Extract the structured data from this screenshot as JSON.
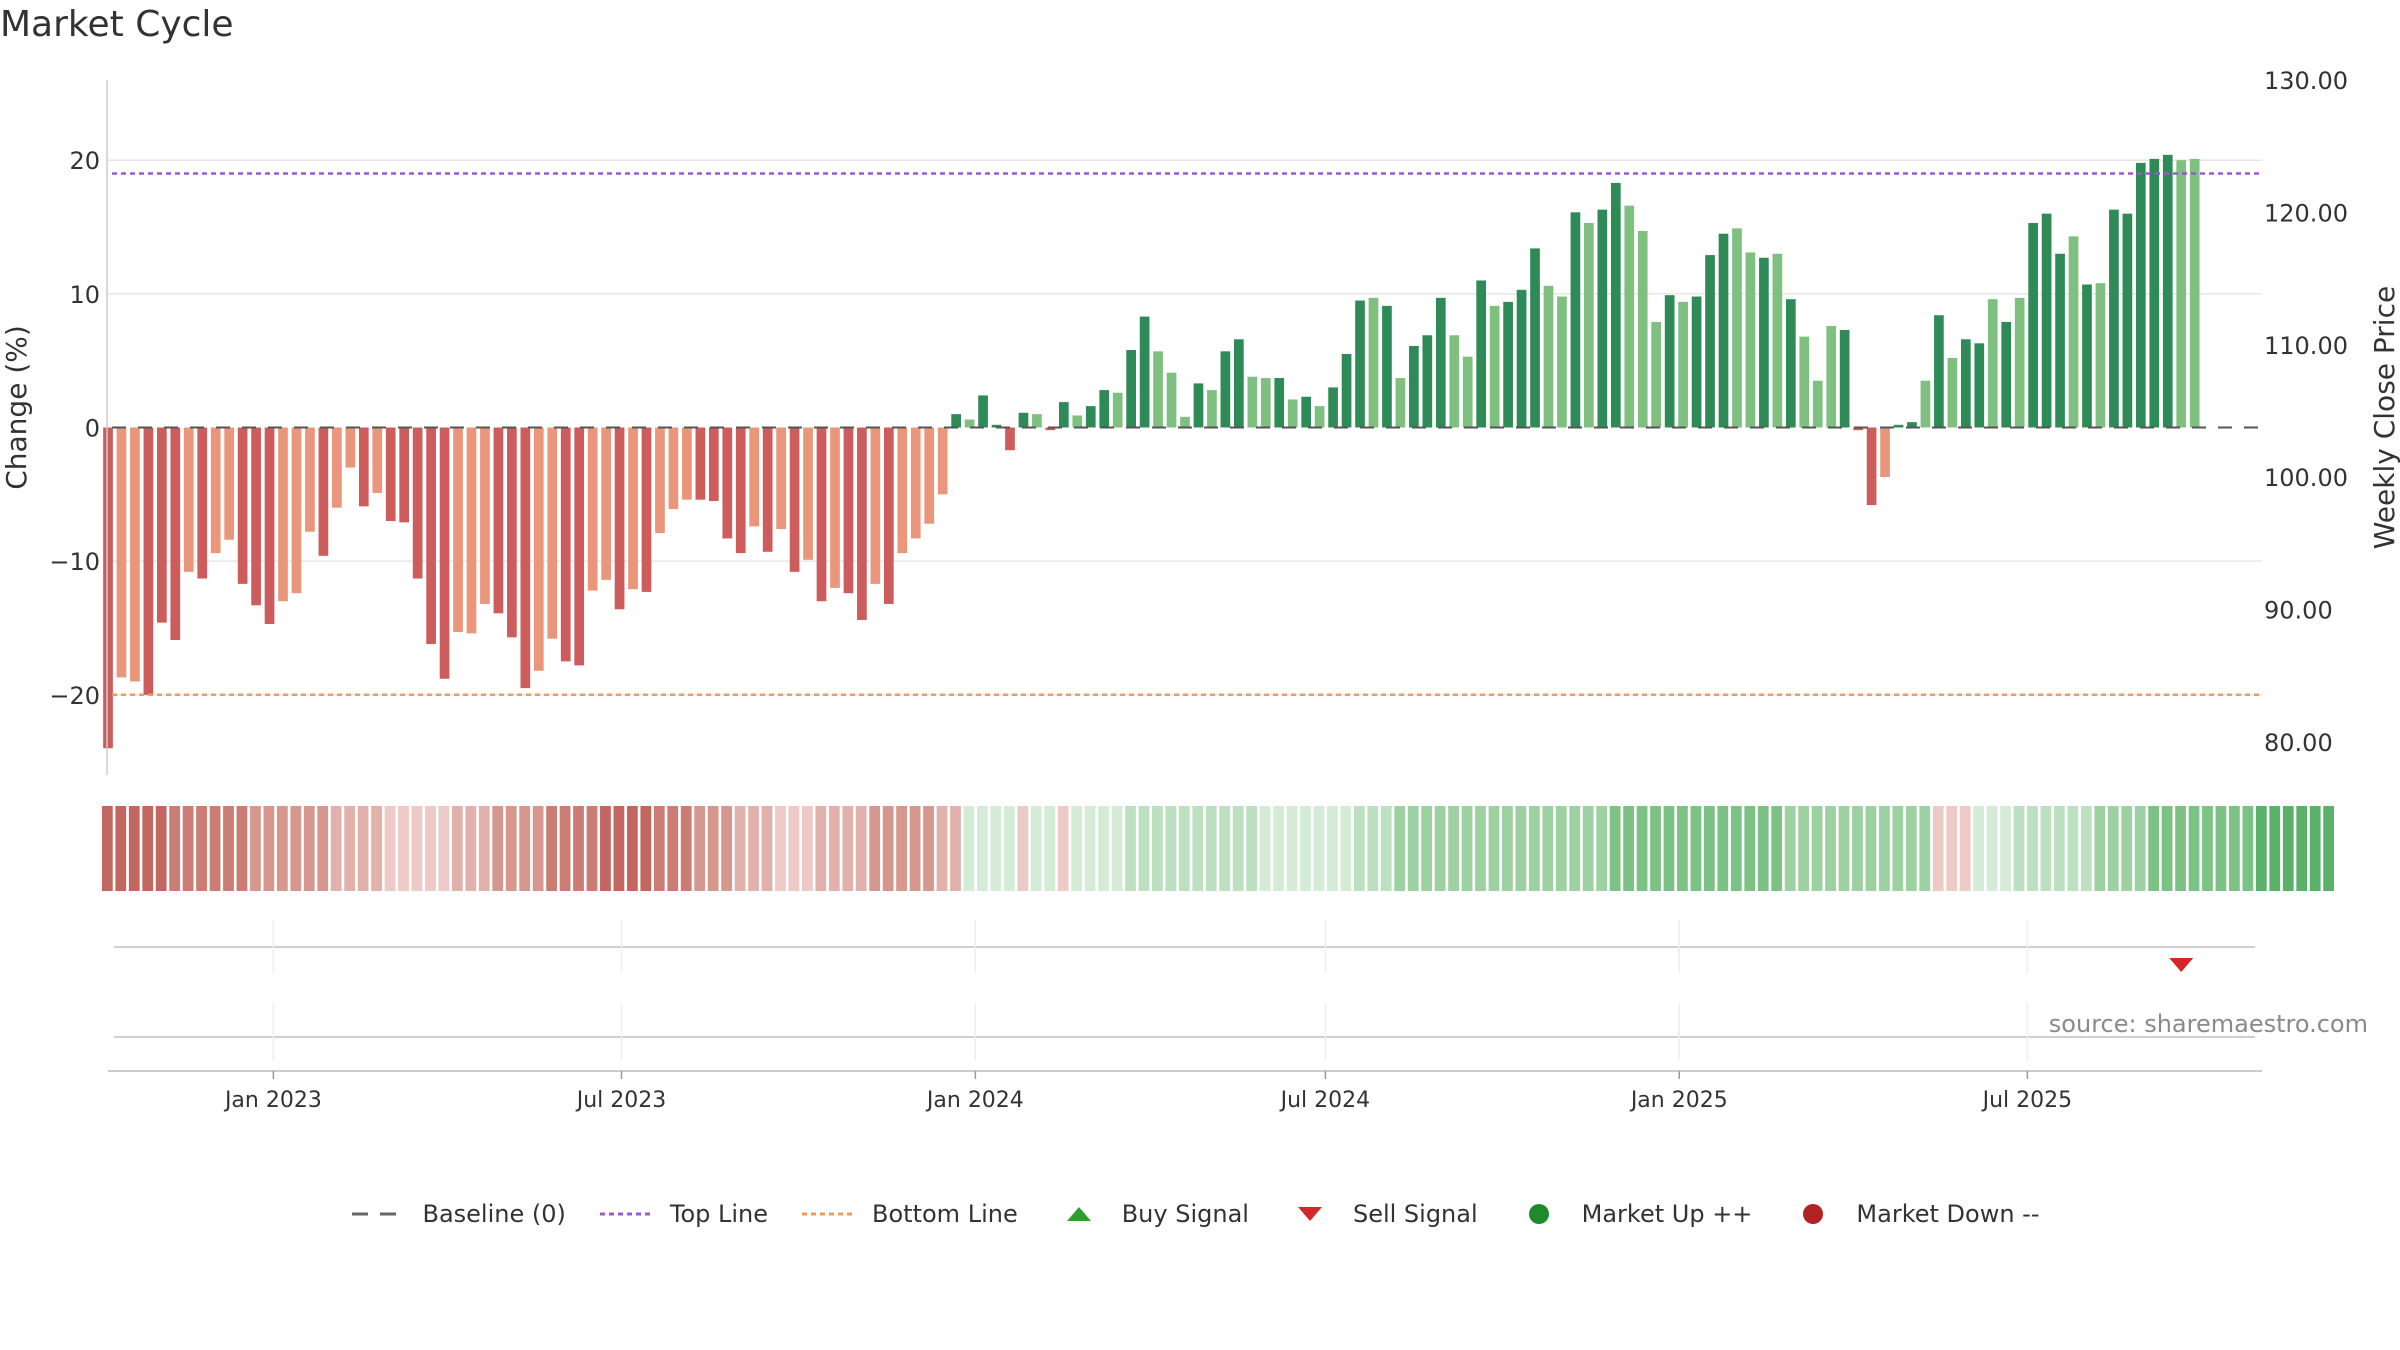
{
  "chart_data": {
    "type": "bar",
    "title": "Market Cycle",
    "ylabel": "Change (%)",
    "y2label": "Weekly Close Price",
    "ylim": [
      -26,
      26
    ],
    "y2lim": [
      77.5,
      130
    ],
    "yticks": [
      20,
      10,
      0,
      -10,
      -20
    ],
    "ytick_labels": [
      "20",
      "10",
      "0",
      "−10",
      "−20"
    ],
    "y2ticks": [
      130,
      120,
      110,
      100,
      90,
      80
    ],
    "y2tick_labels": [
      "130.00",
      "120.00",
      "110.00",
      "100.00",
      "90.00",
      "80.00"
    ],
    "x_start": "2022-10-07",
    "x_end": "2025-10-31",
    "xticks": [
      {
        "date": "2023-01-01",
        "label": "Jan 2023"
      },
      {
        "date": "2023-07-01",
        "label": "Jul 2023"
      },
      {
        "date": "2024-01-01",
        "label": "Jan 2024"
      },
      {
        "date": "2024-07-01",
        "label": "Jul 2024"
      },
      {
        "date": "2025-01-01",
        "label": "Jan 2025"
      },
      {
        "date": "2025-07-01",
        "label": "Jul 2025"
      }
    ],
    "first_week": "2022-10-07",
    "reference_lines": {
      "baseline": 0,
      "top_line": 19,
      "bottom_line": -20
    },
    "values": [
      -24,
      -18.7,
      -19,
      -20,
      -14.6,
      -15.9,
      -10.8,
      -11.3,
      -9.4,
      -8.4,
      -11.7,
      -13.3,
      -14.7,
      -13,
      -12.4,
      -7.8,
      -9.6,
      -6,
      -3,
      -5.9,
      -4.9,
      -7,
      -7.1,
      -11.3,
      -16.2,
      -18.8,
      -15.3,
      -15.4,
      -13.2,
      -13.9,
      -15.7,
      -19.5,
      -18.2,
      -15.8,
      -17.5,
      -17.8,
      -12.2,
      -11.4,
      -13.6,
      -12.1,
      -12.3,
      -7.9,
      -6.1,
      -5.4,
      -5.4,
      -5.5,
      -8.3,
      -9.4,
      -7.4,
      -9.3,
      -7.6,
      -10.8,
      -9.9,
      -13,
      -12,
      -12.4,
      -14.4,
      -11.7,
      -13.2,
      -9.4,
      -8.3,
      -7.2,
      -5,
      1,
      0.6,
      2.4,
      0.2,
      -1.7,
      1.1,
      1,
      -0.2,
      1.9,
      0.9,
      1.6,
      2.8,
      2.6,
      5.8,
      8.3,
      5.7,
      4.1,
      0.8,
      3.3,
      2.8,
      5.7,
      6.6,
      3.8,
      3.7,
      3.7,
      2.1,
      2.3,
      1.6,
      3,
      5.5,
      9.5,
      9.7,
      9.1,
      3.7,
      6.1,
      6.9,
      9.7,
      6.9,
      5.3,
      11,
      9.1,
      9.4,
      10.3,
      13.4,
      10.6,
      9.8,
      16.1,
      15.3,
      16.3,
      18.3,
      16.6,
      14.7,
      7.9,
      9.9,
      9.4,
      9.8,
      12.9,
      14.5,
      14.9,
      13.1,
      12.7,
      13,
      9.6,
      6.8,
      3.5,
      7.6,
      7.3,
      -0.2,
      -5.8,
      -3.7,
      0.2,
      0.4,
      3.5,
      8.4,
      5.2,
      6.6,
      6.3,
      9.6,
      7.9,
      9.7,
      15.3,
      16,
      13,
      14.3,
      10.7,
      10.8,
      16.3,
      16,
      19.8,
      20.1,
      20.4,
      20,
      20.1
    ],
    "shades": [
      0,
      1,
      1,
      0,
      0,
      0,
      1,
      0,
      1,
      1,
      0,
      0,
      0,
      1,
      1,
      1,
      0,
      1,
      1,
      0,
      1,
      0,
      0,
      0,
      0,
      0,
      1,
      1,
      1,
      0,
      0,
      0,
      1,
      1,
      0,
      0,
      1,
      1,
      0,
      1,
      0,
      1,
      1,
      1,
      0,
      0,
      0,
      0,
      1,
      0,
      1,
      0,
      1,
      0,
      1,
      0,
      0,
      1,
      0,
      1,
      1,
      1,
      1,
      0,
      1,
      0,
      0,
      0,
      0,
      1,
      0,
      0,
      1,
      0,
      0,
      1,
      0,
      0,
      1,
      1,
      1,
      0,
      1,
      0,
      0,
      1,
      1,
      0,
      1,
      0,
      1,
      0,
      0,
      0,
      1,
      0,
      1,
      0,
      0,
      0,
      1,
      1,
      0,
      1,
      0,
      0,
      0,
      1,
      1,
      0,
      1,
      0,
      0,
      1,
      1,
      1,
      0,
      1,
      0,
      0,
      0,
      1,
      1,
      0,
      1,
      0,
      1,
      1,
      1,
      0,
      0,
      0,
      1,
      0,
      0,
      1,
      0,
      1,
      0,
      0,
      1,
      0,
      1,
      0,
      0,
      0,
      1,
      0,
      1,
      0,
      0,
      0,
      0,
      0,
      1,
      1
    ],
    "sentiment_strip": [
      -5,
      -5,
      -5,
      -5,
      -5,
      -4,
      -4,
      -4,
      -4,
      -4,
      -4,
      -3,
      -3,
      -3,
      -3,
      -3,
      -3,
      -2,
      -2,
      -2,
      -2,
      -1,
      -1,
      -1,
      -1,
      -1,
      -2,
      -2,
      -2,
      -3,
      -3,
      -3,
      -3,
      -4,
      -4,
      -4,
      -4,
      -5,
      -5,
      -5,
      -5,
      -4,
      -4,
      -4,
      -3,
      -3,
      -3,
      -2,
      -2,
      -2,
      -1,
      -1,
      -1,
      -2,
      -2,
      -2,
      -2,
      -3,
      -3,
      -3,
      -3,
      -3,
      -2,
      -2,
      1,
      1,
      1,
      1,
      -1,
      1,
      1,
      -1,
      1,
      1,
      1,
      1,
      2,
      2,
      2,
      2,
      2,
      2,
      2,
      2,
      2,
      2,
      1,
      1,
      1,
      1,
      1,
      1,
      1,
      2,
      2,
      2,
      3,
      3,
      3,
      3,
      3,
      3,
      3,
      3,
      3,
      3,
      3,
      3,
      3,
      3,
      3,
      3,
      4,
      4,
      4,
      4,
      4,
      4,
      4,
      4,
      4,
      4,
      4,
      4,
      4,
      3,
      3,
      3,
      3,
      3,
      3,
      3,
      3,
      3,
      3,
      3,
      -1,
      -1,
      -1,
      1,
      1,
      1,
      2,
      2,
      2,
      2,
      2,
      2,
      3,
      3,
      3,
      3,
      4,
      4,
      4,
      4,
      4,
      4,
      4,
      4,
      5,
      5,
      5,
      5,
      5,
      5
    ],
    "sell_signal_date": "2025-09-19",
    "legend": [
      {
        "label": "Baseline (0)",
        "marker": "dash-line",
        "color": "#666666"
      },
      {
        "label": "Top Line",
        "marker": "dotted-line",
        "color": "#9b59d0"
      },
      {
        "label": "Bottom Line",
        "marker": "dotted-line",
        "color": "#ef9b5a"
      },
      {
        "label": "Buy Signal",
        "marker": "triangle-up",
        "color": "#2ca02c"
      },
      {
        "label": "Sell Signal",
        "marker": "triangle-down",
        "color": "#d62728"
      },
      {
        "label": "Market Up ++",
        "marker": "circle",
        "color": "#1f8a2a"
      },
      {
        "label": "Market Down --",
        "marker": "circle",
        "color": "#b22222"
      }
    ],
    "colors": {
      "pos_dark": "#2e8b57",
      "pos_light": "#7fbf7f",
      "neg_dark": "#cd5c5c",
      "neg_light": "#e9967a",
      "top_line": "#9b59d0",
      "bottom_line": "#ef9b5a",
      "sell_signal": "#d62728"
    }
  },
  "source_text": "source: sharemaestro.com"
}
